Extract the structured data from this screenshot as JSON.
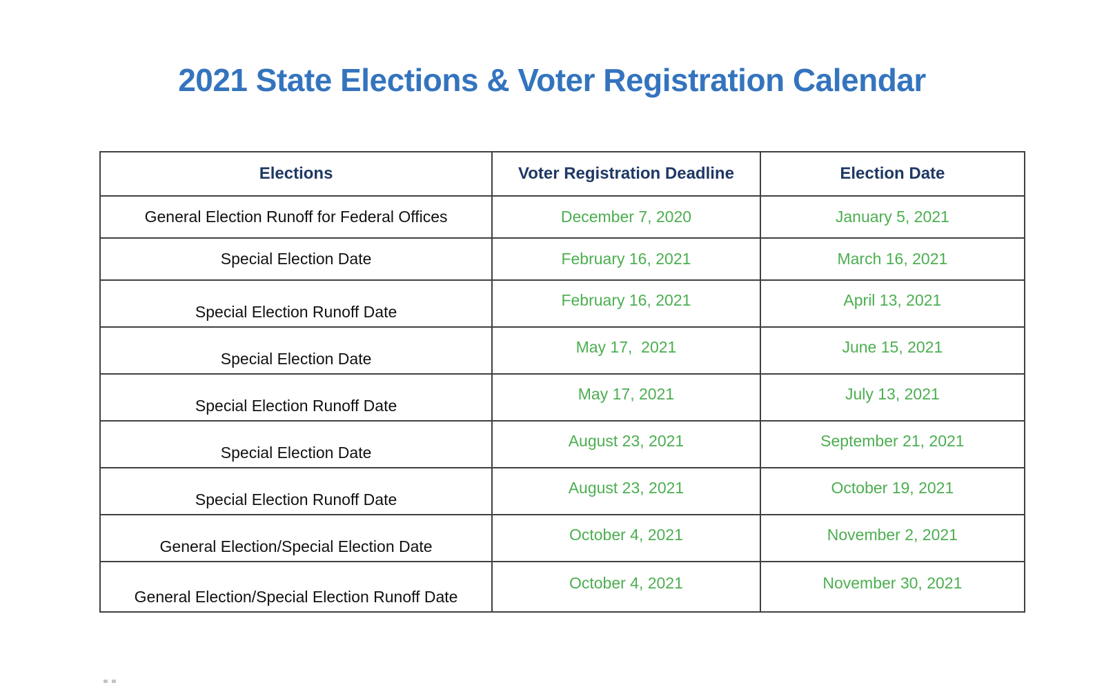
{
  "title": "2021 State Elections & Voter Registration Calendar",
  "colors": {
    "title_blue": "#3474be",
    "header_navy": "#1f3864",
    "date_green": "#4cae50",
    "label_black": "#111111",
    "border_gray": "#3f3f3f",
    "background": "#ffffff"
  },
  "table": {
    "headers": [
      "Elections",
      "Voter Registration Deadline",
      "Election Date"
    ],
    "rows": [
      {
        "election": "General Election Runoff for Federal Offices",
        "deadline": "December 7, 2020",
        "date": "January 5, 2021"
      },
      {
        "election": "Special Election Date",
        "deadline": "February 16, 2021",
        "date": "March 16, 2021"
      },
      {
        "election": "Special Election Runoff Date",
        "deadline": "February 16, 2021",
        "date": "April 13, 2021"
      },
      {
        "election": "Special Election Date",
        "deadline": "May 17,  2021",
        "date": "June 15, 2021"
      },
      {
        "election": "Special Election Runoff Date",
        "deadline": "May 17, 2021",
        "date": "July 13, 2021"
      },
      {
        "election": "Special Election Date",
        "deadline": "August 23, 2021",
        "date": "September 21, 2021"
      },
      {
        "election": "Special Election Runoff Date",
        "deadline": "August 23, 2021",
        "date": "October 19, 2021"
      },
      {
        "election": "General Election/Special Election Date",
        "deadline": "October 4, 2021",
        "date": "November 2, 2021"
      },
      {
        "election": "General Election/Special Election Runoff Date",
        "deadline": "October 4, 2021",
        "date": "November 30, 2021"
      }
    ]
  }
}
